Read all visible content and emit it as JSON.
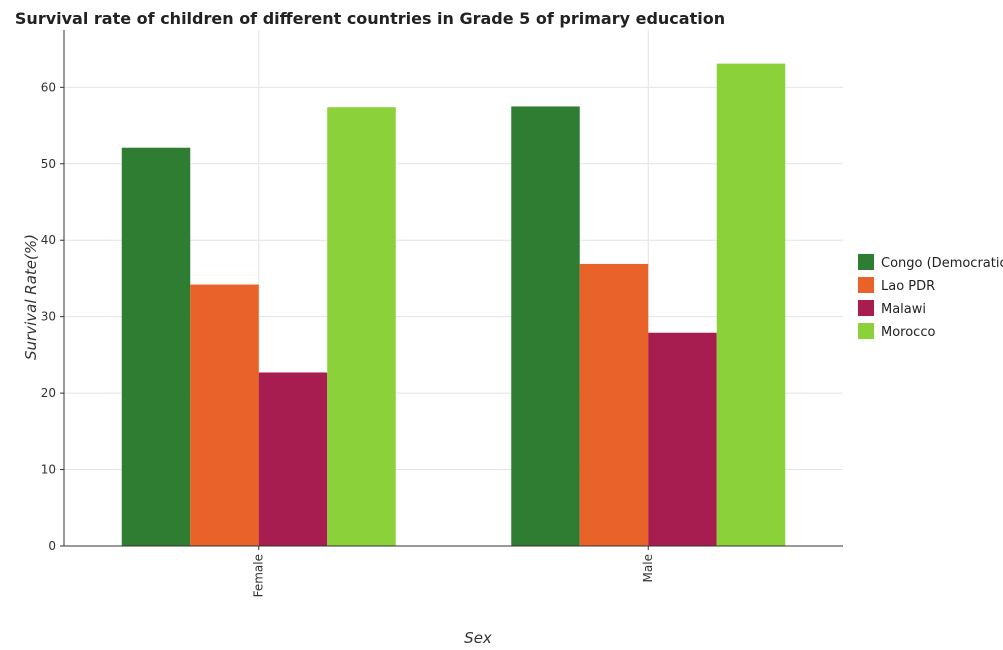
{
  "chart_data": {
    "type": "bar",
    "title": "Survival rate of children of different countries in Grade 5 of primary education",
    "xlabel": "Sex",
    "ylabel": "Survival Rate(%)",
    "categories": [
      "Female",
      "Male"
    ],
    "ylim": [
      0,
      67.5
    ],
    "yticks": [
      0,
      10,
      20,
      30,
      40,
      50,
      60
    ],
    "grid": true,
    "legend_position": "right",
    "series": [
      {
        "name": "Congo (Democratic)",
        "color": "#2e7d32",
        "values": [
          52.1,
          57.5
        ]
      },
      {
        "name": "Lao PDR",
        "color": "#e8622a",
        "values": [
          34.2,
          36.9
        ]
      },
      {
        "name": "Malawi",
        "color": "#a81d4f",
        "values": [
          22.7,
          27.9
        ]
      },
      {
        "name": "Morocco",
        "color": "#8ad13a",
        "values": [
          57.4,
          63.1
        ]
      }
    ]
  }
}
